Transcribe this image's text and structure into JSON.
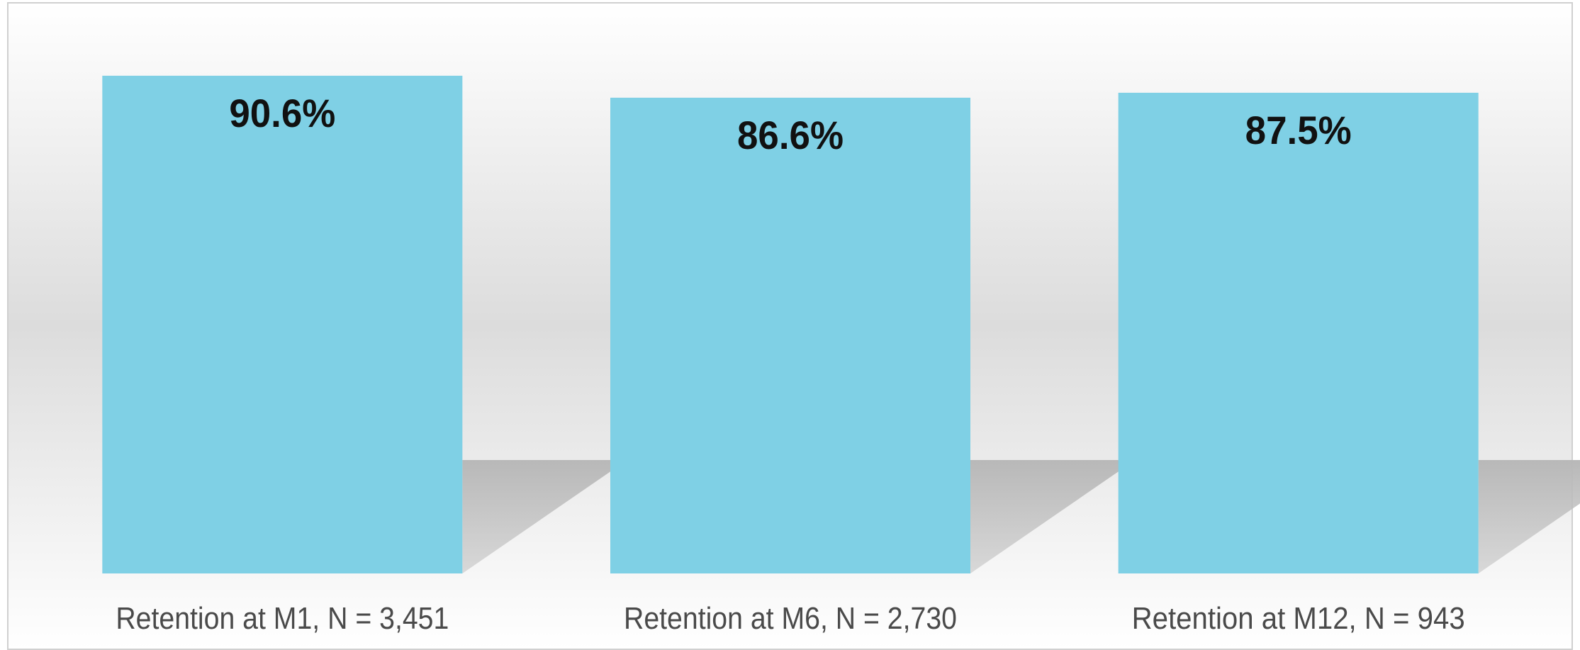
{
  "chart_data": {
    "type": "bar",
    "categories": [
      "Retention at M1, N = 3,451",
      "Retention at M6, N = 2,730",
      "Retention at M12, N = 943"
    ],
    "values": [
      90.6,
      86.6,
      87.5
    ],
    "value_labels": [
      "90.6%",
      "86.6%",
      "87.5%"
    ],
    "color": "#7fd0e5",
    "ylim": [
      0,
      100
    ]
  }
}
